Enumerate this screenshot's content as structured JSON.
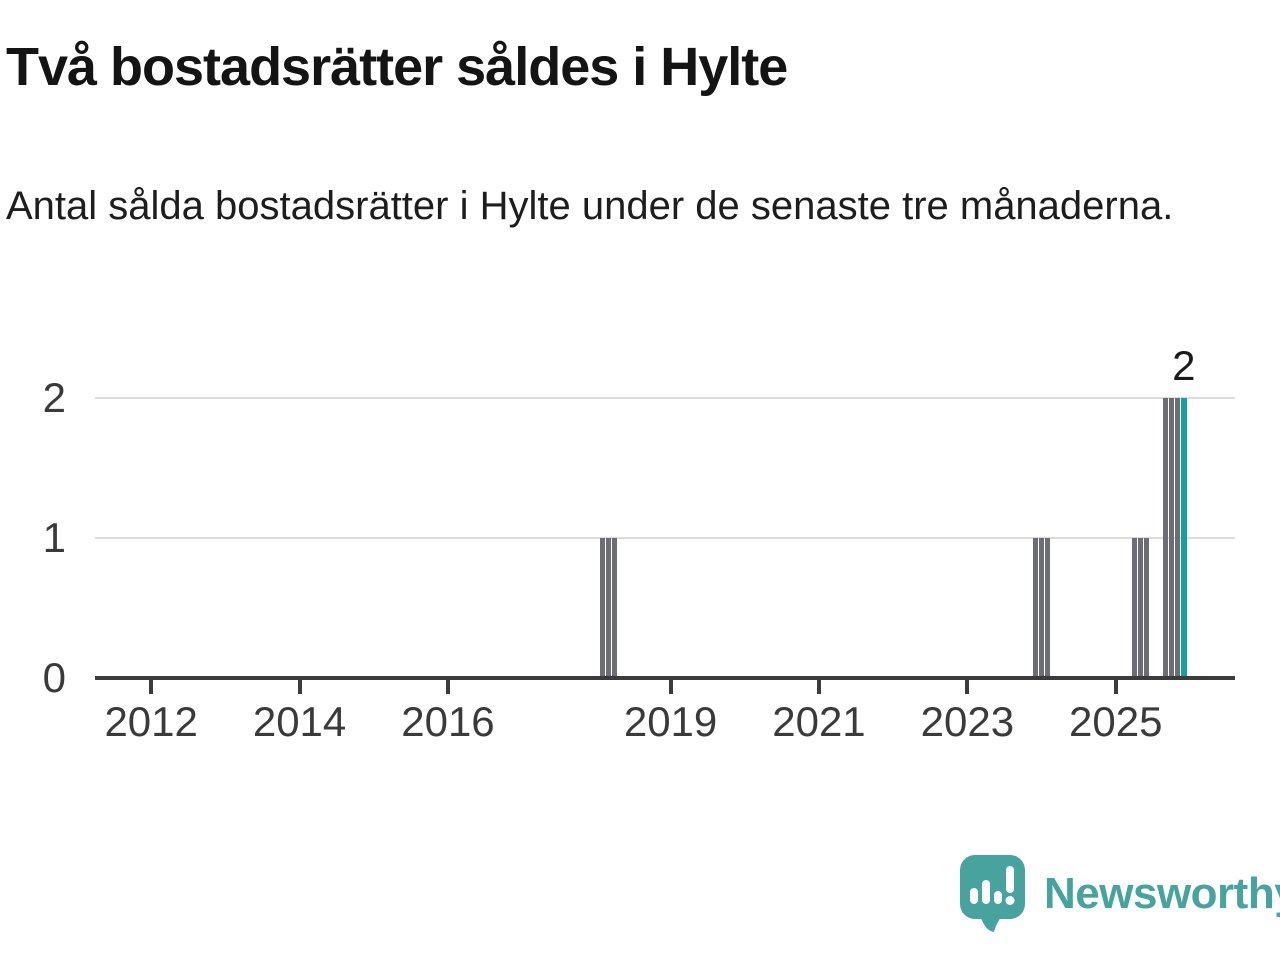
{
  "header": {
    "title": "Två bostadsrätter såldes i Hylte",
    "subtitle": "Antal sålda bostadsrätter i Hylte under de senaste tre månaderna."
  },
  "chart_data": {
    "type": "bar",
    "title": "Två bostadsrätter såldes i Hylte",
    "subtitle": "Antal sålda bostadsrätter i Hylte under de senaste tre månaderna.",
    "x_axis": {
      "tick_labels": [
        "2012",
        "2014",
        "2016",
        "2019",
        "2021",
        "2023",
        "2025"
      ],
      "xlim_years": [
        2011.3,
        2026.3
      ],
      "grid": false
    },
    "y_axis": {
      "ticks": [
        {
          "label": "0",
          "value": 0
        },
        {
          "label": "1",
          "value": 1
        },
        {
          "label": "2",
          "value": 2
        }
      ],
      "ylim": [
        0,
        2
      ],
      "grid": true
    },
    "bars": [
      {
        "month": "2018-02",
        "value": 1
      },
      {
        "month": "2018-03",
        "value": 1
      },
      {
        "month": "2018-04",
        "value": 1
      },
      {
        "month": "2023-12",
        "value": 1
      },
      {
        "month": "2024-01",
        "value": 1
      },
      {
        "month": "2024-02",
        "value": 1
      },
      {
        "month": "2025-04",
        "value": 1
      },
      {
        "month": "2025-05",
        "value": 1
      },
      {
        "month": "2025-06",
        "value": 1
      },
      {
        "month": "2025-09",
        "value": 2
      },
      {
        "month": "2025-10",
        "value": 2
      },
      {
        "month": "2025-11",
        "value": 2
      },
      {
        "month": "2025-12",
        "value": 2,
        "highlight": true
      }
    ],
    "value_label": {
      "text": "2",
      "month": "2025-12",
      "value": 2
    },
    "colors": {
      "bar_default": "#6d6d74",
      "bar_highlight": "#14a39c",
      "gridline": "#dcdcdc",
      "axis": "#3b3b3b",
      "tick_text": "#3a3a3a"
    },
    "legend": null
  },
  "footer": {
    "brand": "Newsworthy",
    "brand_color": "#47a39d"
  }
}
